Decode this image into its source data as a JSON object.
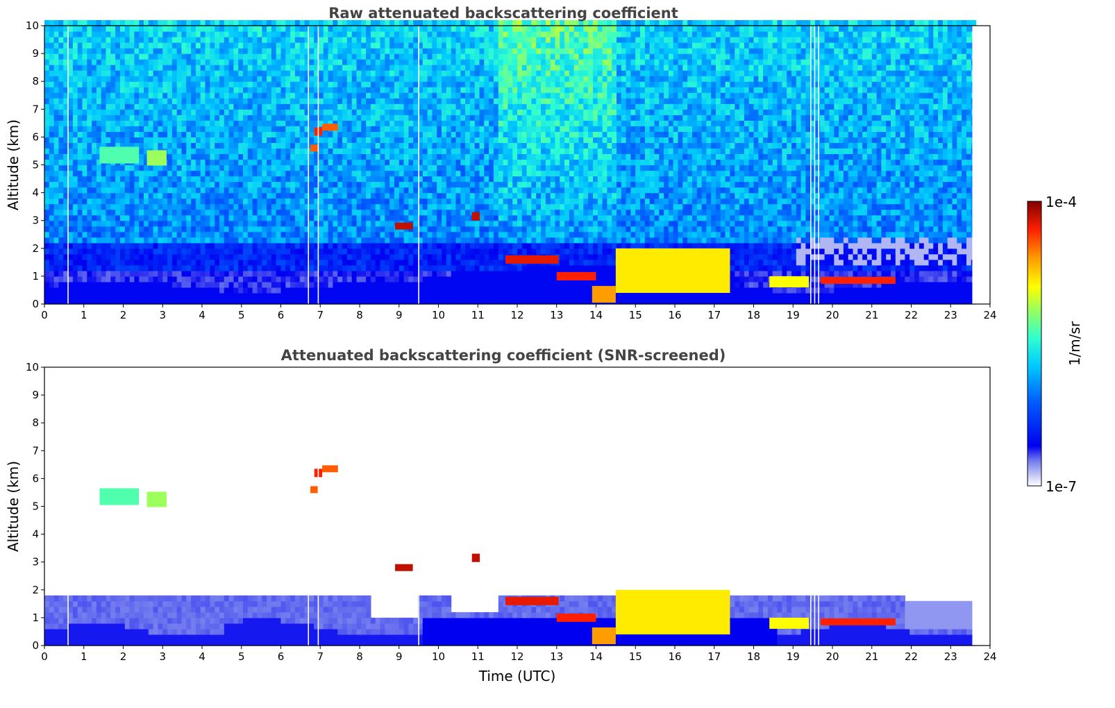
{
  "chart_data": [
    {
      "type": "heatmap",
      "title": "Raw attenuated backscattering coefficient",
      "xlabel": "",
      "ylabel": "Altitude (km)",
      "xlim": [
        0,
        24
      ],
      "ylim": [
        0,
        10
      ],
      "xticks": [
        "0",
        "1",
        "2",
        "3",
        "4",
        "5",
        "6",
        "7",
        "8",
        "9",
        "10",
        "11",
        "12",
        "13",
        "14",
        "15",
        "16",
        "17",
        "18",
        "19",
        "20",
        "21",
        "22",
        "23",
        "24"
      ],
      "yticks": [
        "0",
        "1",
        "2",
        "3",
        "4",
        "5",
        "6",
        "7",
        "8",
        "9",
        "10"
      ],
      "screened": false,
      "data_end_time": 23.55,
      "gap_times": [
        0.6,
        6.7,
        6.95,
        9.5,
        19.45,
        19.55,
        19.65
      ],
      "features": [
        {
          "t0": 1.4,
          "t1": 2.4,
          "z": 5.35,
          "thk": 0.6,
          "level": 0.55
        },
        {
          "t0": 2.6,
          "t1": 3.1,
          "z": 5.25,
          "thk": 0.55,
          "level": 0.62
        },
        {
          "t0": 6.75,
          "t1": 6.95,
          "z": 5.6,
          "thk": 0.25,
          "level": 0.85
        },
        {
          "t0": 6.85,
          "t1": 7.05,
          "z": 6.2,
          "thk": 0.3,
          "level": 0.9
        },
        {
          "t0": 7.05,
          "t1": 7.45,
          "z": 6.35,
          "thk": 0.25,
          "level": 0.85
        },
        {
          "t0": 8.9,
          "t1": 9.35,
          "z": 2.8,
          "thk": 0.25,
          "level": 0.95
        },
        {
          "t0": 10.85,
          "t1": 11.05,
          "z": 3.15,
          "thk": 0.3,
          "level": 0.95
        },
        {
          "t0": 11.7,
          "t1": 13.05,
          "z": 1.6,
          "thk": 0.3,
          "level": 0.92
        },
        {
          "t0": 13.0,
          "t1": 14.0,
          "z": 1.0,
          "thk": 0.3,
          "level": 0.9
        },
        {
          "t0": 13.9,
          "t1": 14.5,
          "z": 0.35,
          "thk": 0.6,
          "level": 0.8
        },
        {
          "t0": 14.5,
          "t1": 17.4,
          "z": 1.2,
          "thk": 1.6,
          "level": 0.72
        },
        {
          "t0": 18.4,
          "t1": 19.4,
          "z": 0.8,
          "thk": 0.4,
          "level": 0.7
        },
        {
          "t0": 19.7,
          "t1": 21.6,
          "z": 0.85,
          "thk": 0.25,
          "level": 0.9
        }
      ]
    },
    {
      "type": "heatmap",
      "title": "Attenuated backscattering coefficient (SNR-screened)",
      "xlabel": "Time (UTC)",
      "ylabel": "Altitude (km)",
      "xlim": [
        0,
        24
      ],
      "ylim": [
        0,
        10
      ],
      "xticks": [
        "0",
        "1",
        "2",
        "3",
        "4",
        "5",
        "6",
        "7",
        "8",
        "9",
        "10",
        "11",
        "12",
        "13",
        "14",
        "15",
        "16",
        "17",
        "18",
        "19",
        "20",
        "21",
        "22",
        "23",
        "24"
      ],
      "yticks": [
        "0",
        "1",
        "2",
        "3",
        "4",
        "5",
        "6",
        "7",
        "8",
        "9",
        "10"
      ],
      "screened": true,
      "data_end_time": 23.55,
      "gap_times": [
        0.6,
        6.7,
        6.95,
        9.5,
        19.45,
        19.55,
        19.65
      ],
      "features": [
        {
          "t0": 1.4,
          "t1": 2.4,
          "z": 5.35,
          "thk": 0.6,
          "level": 0.55
        },
        {
          "t0": 2.6,
          "t1": 3.1,
          "z": 5.25,
          "thk": 0.55,
          "level": 0.62
        },
        {
          "t0": 6.75,
          "t1": 6.95,
          "z": 5.6,
          "thk": 0.25,
          "level": 0.85
        },
        {
          "t0": 6.85,
          "t1": 7.05,
          "z": 6.2,
          "thk": 0.3,
          "level": 0.9
        },
        {
          "t0": 7.05,
          "t1": 7.45,
          "z": 6.35,
          "thk": 0.25,
          "level": 0.85
        },
        {
          "t0": 8.9,
          "t1": 9.35,
          "z": 2.8,
          "thk": 0.25,
          "level": 0.95
        },
        {
          "t0": 10.85,
          "t1": 11.05,
          "z": 3.15,
          "thk": 0.3,
          "level": 0.95
        },
        {
          "t0": 11.7,
          "t1": 13.05,
          "z": 1.6,
          "thk": 0.3,
          "level": 0.92
        },
        {
          "t0": 13.0,
          "t1": 14.0,
          "z": 1.0,
          "thk": 0.3,
          "level": 0.9
        },
        {
          "t0": 13.9,
          "t1": 14.5,
          "z": 0.35,
          "thk": 0.6,
          "level": 0.8
        },
        {
          "t0": 14.5,
          "t1": 17.4,
          "z": 1.2,
          "thk": 1.6,
          "level": 0.72
        },
        {
          "t0": 18.4,
          "t1": 19.4,
          "z": 0.8,
          "thk": 0.4,
          "level": 0.7
        },
        {
          "t0": 19.7,
          "t1": 21.6,
          "z": 0.85,
          "thk": 0.25,
          "level": 0.9
        }
      ]
    }
  ],
  "colorbar": {
    "max_label": "1e-4",
    "min_label": "1e-7",
    "unit_label": "1/m/sr",
    "scale": "log",
    "colormap": "jet"
  }
}
